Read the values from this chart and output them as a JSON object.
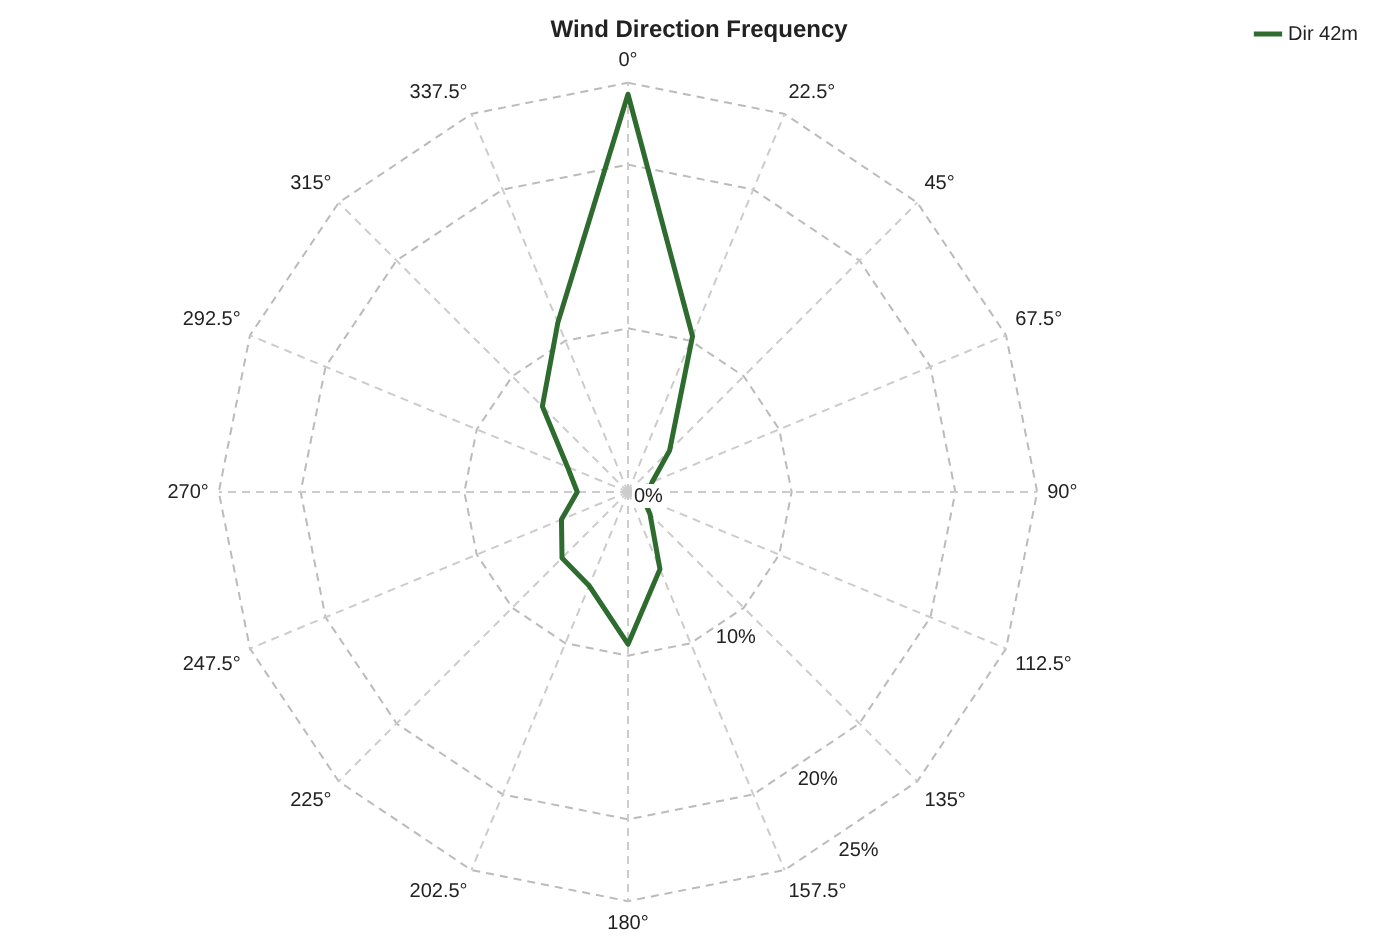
{
  "chart_data": {
    "type": "radar",
    "title": "Wind Direction Frequency",
    "categories": [
      "0°",
      "22.5°",
      "45°",
      "67.5°",
      "90°",
      "112.5°",
      "135°",
      "157.5°",
      "180°",
      "202.5°",
      "225°",
      "247.5°",
      "270°",
      "292.5°",
      "315°",
      "337.5°"
    ],
    "series": [
      {
        "name": "Dir 42m",
        "color": "#2e6b2e",
        "values": [
          24.3,
          10.3,
          3.6,
          1.6,
          1.2,
          1.0,
          1.9,
          5.1,
          9.3,
          6.2,
          5.7,
          4.4,
          3.1,
          4.0,
          7.4,
          11.2
        ]
      }
    ],
    "ylim": [
      0,
      25
    ],
    "yticks": [
      {
        "value": 0,
        "label": "0%"
      },
      {
        "value": 10,
        "label": "10%"
      },
      {
        "value": 20,
        "label": "20%"
      },
      {
        "value": 25,
        "label": "25%"
      }
    ],
    "grid": true,
    "legend": "top right",
    "marker": "none"
  }
}
